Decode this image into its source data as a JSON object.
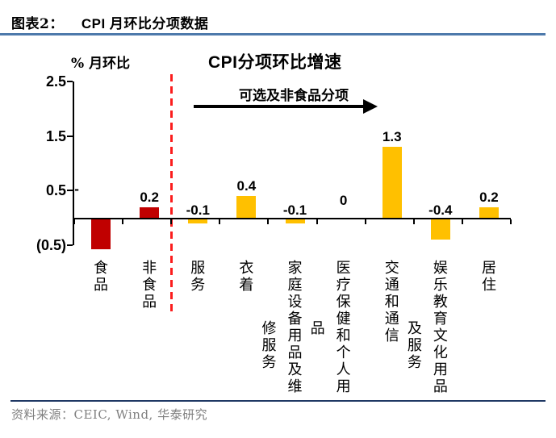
{
  "header": {
    "figure_tag": "图表2：",
    "figure_title": "CPI 月环比分项数据"
  },
  "chart_data": {
    "type": "bar",
    "title": "CPI分项环比增速",
    "ylabel": "% 月环比",
    "annotation": "可选及非食品分项",
    "divider": {
      "style": "red-dashed-vertical",
      "between": [
        "非食品",
        "服务"
      ]
    },
    "categories": [
      "食品",
      "非食品",
      "服务",
      "衣着",
      "家庭设备用品及维修服务",
      "医疗保健和个人用品",
      "交通和通信",
      "娱乐教育文化用品及服务",
      "居住"
    ],
    "values": [
      -0.58,
      0.2,
      -0.1,
      0.4,
      -0.1,
      0,
      1.3,
      -0.4,
      0.2
    ],
    "bar_labels": [
      "-",
      "0.2",
      "-0.1",
      "0.4",
      "-0.1",
      "0",
      "1.3",
      "-0.4",
      "0.2"
    ],
    "bar_colors": [
      "#c00000",
      "#c00000",
      "#ffc000",
      "#ffc000",
      "#ffc000",
      "#ffc000",
      "#ffc000",
      "#ffc000",
      "#ffc000"
    ],
    "ylim": [
      -0.5,
      2.5
    ],
    "ytick_labels": [
      "2.5",
      "1.5",
      "0.5",
      "(0.5)"
    ],
    "ytick_values": [
      2.5,
      1.5,
      0.5,
      -0.5
    ],
    "grid": false,
    "legend": null
  },
  "footer": {
    "source": "资料来源：CEIC, Wind, 华泰研究"
  },
  "colors": {
    "bar_negative_group": "#c00000",
    "bar_optional_group": "#ffc000",
    "divider_red": "#fb1d1d",
    "header_rule": "#4d79ab",
    "footer_rule": "#1f3864",
    "source_text": "#808080"
  }
}
